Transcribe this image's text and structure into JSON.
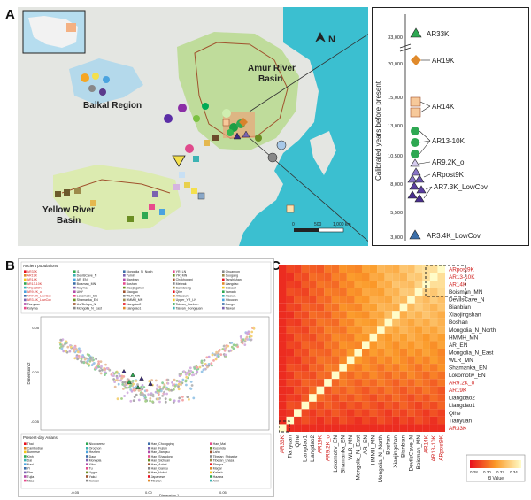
{
  "panels": {
    "a": "A",
    "b": "B",
    "c": "C"
  },
  "map": {
    "regions": {
      "baikal": "Baikal Region",
      "amur": "Amur River Basin",
      "yellow": "Yellow River Basin"
    },
    "amur_lines": [
      "Amur River",
      "Basin"
    ],
    "yellow_lines": [
      "Yellow River",
      "Basin"
    ],
    "north": "N",
    "scale_ticks": [
      "0",
      "500",
      "1,000 km"
    ]
  },
  "timeline": {
    "ylabel": "Calibrated years before present",
    "ticks": [
      "33,000",
      "20,000",
      "15,000",
      "13,000",
      "10,500",
      "8,000",
      "5,500",
      "3,000"
    ],
    "labels": [
      "AR33K",
      "AR19K",
      "AR14K",
      "AR13-10K",
      "AR9.2K_o",
      "ARpost9K",
      "AR7.3K_LowCov",
      "AR3.4K_LowCov"
    ]
  },
  "pca": {
    "ancient_title": "Ancient populations",
    "presentday_title": "Present-day Asians",
    "xlabel": "Dimension 1",
    "ylabel": "Dimension 2",
    "xticks": [
      "-0.05",
      "0.00",
      "0.05"
    ],
    "yticks": [
      "0.05",
      "0.00",
      "-0.05"
    ],
    "ancient_col1": [
      "AR33K",
      "AR19K",
      "AR14K",
      "AR13-10K",
      "ARpost9K",
      "AR9.2K_o",
      "AR7.3K_LowCov",
      "AR3.4K_LowCov",
      "Tianyuan",
      "Kolyma"
    ],
    "ancient_col2": [
      "I1",
      "DevilsCave_N",
      "AR_EN",
      "Boisman_MN",
      "Kolyma",
      "UKY",
      "Lokomotiv_EN",
      "Shamanka_EN",
      "Ust'Belaya_N",
      "Mongolia_N_East"
    ],
    "ancient_col3": [
      "Mongolia_N_North",
      "Yumin",
      "Bianbian",
      "Boshan",
      "Xiaojingshan",
      "Xiaogao",
      "WLR_MN",
      "HMMH_MN",
      "Liangdao2",
      "Liangdao1"
    ],
    "ancient_col4": [
      "YR_LN",
      "YR_MN",
      "Chokhopani",
      "Mebrak",
      "Samdzong",
      "Qihe",
      "Xitoucun",
      "Upper_YR_LN",
      "Taiwan_Hanben",
      "Taiwan_Gongguan"
    ],
    "ancient_col5": [
      "Chuanyon",
      "Suogang",
      "Tanshishan",
      "Liangdao",
      "Oakaeri",
      "Yamato",
      "Xiaowa",
      "Xitoucun",
      "Jiangxi",
      "Taiwan"
    ],
    "present_col1": [
      "Thai",
      "Cambodian",
      "Burmese",
      "Kinh",
      "Dai",
      "Naxi",
      "Yi",
      "She",
      "Tujia",
      "Miao"
    ],
    "present_col2": [
      "Nicobarese",
      "Orochon",
      "Hezhen",
      "Daur",
      "Mongola",
      "Xibo",
      "Tu",
      "Uygur",
      "Yakut",
      "Korean"
    ],
    "present_col3": [
      "Han_Chongqing",
      "Han_Fujian",
      "Han_Jiangsu",
      "Han_Shandong",
      "Han_Sichuan",
      "Han_Anhui",
      "Han_Gansu",
      "Han_Hubei",
      "Japanese",
      "Tibetan"
    ],
    "present_col4": [
      "Han_Mai",
      "Kusunda",
      "Lahu",
      "Tibetan_Shigatse",
      "Tibetan_Lhasa",
      "Sherpa",
      "Magar",
      "Kalash",
      "Hazara",
      "Ami"
    ]
  },
  "heatmap": {
    "row_labels": [
      "ARpost9K",
      "AR13-10K",
      "AR14K",
      "Boisman_MN",
      "DevilsCave_N",
      "Bianbian",
      "Xiaojingshan",
      "Boshan",
      "Mongolia_N_North",
      "HMMH_MN",
      "AR_EN",
      "Mongolia_N_East",
      "WLR_MN",
      "Shamanka_EN",
      "Lokomotiv_EN",
      "AR9.2K_o",
      "AR19K",
      "Liangdao2",
      "Liangdao1",
      "Qihe",
      "Tianyuan",
      "AR33K"
    ],
    "col_labels": [
      "AR33K",
      "Tianyuan",
      "Qihe",
      "Liangdao1",
      "Liangdao2",
      "AR19K",
      "AR9.2K_o",
      "Lokomotiv_EN",
      "Shamanka_EN",
      "WLR_MN",
      "Mongolia_N_East",
      "AR_EN",
      "HMMH_MN",
      "Mongolia_N_North",
      "Boshan",
      "Xiaojingshan",
      "Bianbian",
      "DevilsCave_N",
      "Boisman_MN",
      "AR14K",
      "AR13-10K",
      "ARpost9K"
    ],
    "red_labels": [
      "ARpost9K",
      "AR13-10K",
      "AR14K",
      "AR9.2K_o",
      "AR19K",
      "AR33K"
    ],
    "legend_ticks": [
      "0.28",
      "0.30",
      "0.32",
      "0.34"
    ],
    "legend_label": "f3 Value"
  }
}
